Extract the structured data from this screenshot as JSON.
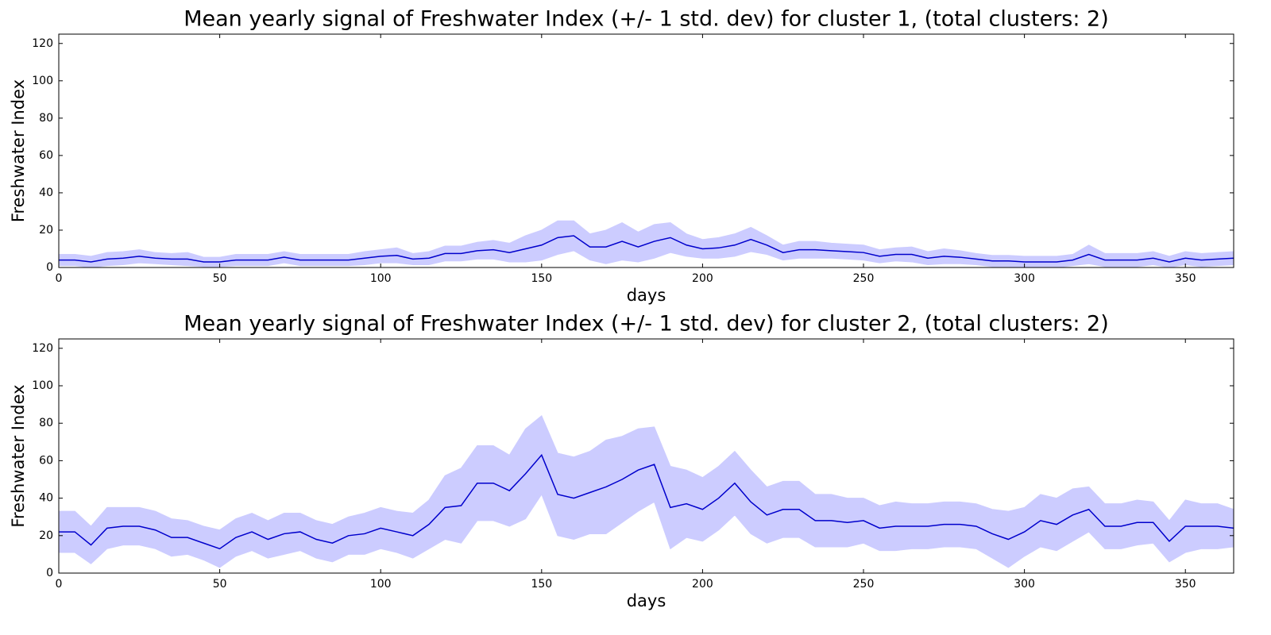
{
  "chart_data": [
    {
      "type": "line",
      "title": "Mean yearly signal of Freshwater Index (+/- 1 std. dev) for cluster 1, (total clusters: 2)",
      "xlabel": "days",
      "ylabel": "Freshwater Index",
      "x": [
        0,
        5,
        10,
        15,
        20,
        25,
        30,
        35,
        40,
        45,
        50,
        55,
        60,
        65,
        70,
        75,
        80,
        85,
        90,
        95,
        100,
        105,
        110,
        115,
        120,
        125,
        130,
        135,
        140,
        145,
        150,
        155,
        160,
        165,
        170,
        175,
        180,
        185,
        190,
        195,
        200,
        205,
        210,
        215,
        220,
        225,
        230,
        235,
        240,
        245,
        250,
        255,
        260,
        265,
        270,
        275,
        280,
        285,
        290,
        295,
        300,
        305,
        310,
        315,
        320,
        325,
        330,
        335,
        340,
        345,
        350,
        355,
        360,
        365
      ],
      "values": [
        4,
        4,
        3,
        4.5,
        5,
        6,
        5,
        4.5,
        4.5,
        3,
        3,
        4,
        4,
        4,
        5.5,
        4,
        4,
        4,
        4,
        5,
        6,
        6.5,
        4.5,
        5,
        7.5,
        7.5,
        9,
        9.5,
        8,
        10,
        12,
        16,
        17,
        11,
        11,
        14,
        11,
        14,
        16,
        12,
        10,
        10.5,
        12,
        15,
        12,
        8,
        9.5,
        9.5,
        9,
        8.5,
        8,
        6,
        7,
        7,
        5,
        6,
        5.5,
        4.5,
        3.5,
        3.5,
        3,
        3,
        3,
        4,
        7,
        4,
        4,
        4,
        5,
        3,
        5,
        4,
        4.5,
        5
      ],
      "std": [
        3,
        3,
        3,
        3.5,
        3.5,
        3.5,
        3,
        3,
        3.5,
        2.5,
        2.5,
        3,
        3,
        3,
        3,
        3,
        3,
        3,
        3,
        3.5,
        3.5,
        4,
        3,
        3.5,
        4,
        4,
        4.5,
        5,
        5,
        7,
        8,
        9,
        8,
        7,
        9,
        10,
        8,
        9,
        8,
        6,
        5,
        5.5,
        6,
        6.5,
        5,
        4,
        4.5,
        4.5,
        4,
        4,
        4,
        3.5,
        3.5,
        4,
        3.5,
        4,
        3.5,
        3,
        3,
        3,
        3,
        3,
        3,
        3,
        5,
        3.5,
        3.5,
        3.5,
        3.5,
        3,
        3.5,
        3.5,
        3.5,
        3.5
      ],
      "color": "#0000cc",
      "band_color": "#ccccff",
      "xlim": [
        0,
        365
      ],
      "xticks": [
        0,
        50,
        100,
        150,
        200,
        250,
        300,
        350
      ],
      "ylim": [
        0,
        125
      ],
      "yticks": [
        0,
        20,
        40,
        60,
        80,
        100,
        120
      ]
    },
    {
      "type": "line",
      "title": "Mean yearly signal of Freshwater Index (+/- 1 std. dev) for cluster 2, (total clusters: 2)",
      "xlabel": "days",
      "ylabel": "Freshwater Index",
      "x": [
        0,
        5,
        10,
        15,
        20,
        25,
        30,
        35,
        40,
        45,
        50,
        55,
        60,
        65,
        70,
        75,
        80,
        85,
        90,
        95,
        100,
        105,
        110,
        115,
        120,
        125,
        130,
        135,
        140,
        145,
        150,
        155,
        160,
        165,
        170,
        175,
        180,
        185,
        190,
        195,
        200,
        205,
        210,
        215,
        220,
        225,
        230,
        235,
        240,
        245,
        250,
        255,
        260,
        265,
        270,
        275,
        280,
        285,
        290,
        295,
        300,
        305,
        310,
        315,
        320,
        325,
        330,
        335,
        340,
        345,
        350,
        355,
        360,
        365
      ],
      "values": [
        22,
        22,
        15,
        24,
        25,
        25,
        23,
        19,
        19,
        16,
        13,
        19,
        22,
        18,
        21,
        22,
        18,
        16,
        20,
        21,
        24,
        22,
        20,
        26,
        35,
        36,
        48,
        48,
        44,
        53,
        63,
        42,
        40,
        43,
        46,
        50,
        55,
        58,
        35,
        37,
        34,
        40,
        48,
        38,
        31,
        34,
        34,
        28,
        28,
        27,
        28,
        24,
        25,
        25,
        25,
        26,
        26,
        25,
        21,
        18,
        22,
        28,
        26,
        31,
        34,
        25,
        25,
        27,
        27,
        17,
        25,
        25,
        25,
        24
      ],
      "std": [
        11,
        11,
        10,
        11,
        10,
        10,
        10,
        10,
        9,
        9,
        10,
        10,
        10,
        10,
        11,
        10,
        10,
        10,
        10,
        11,
        11,
        11,
        12,
        13,
        17,
        20,
        20,
        20,
        19,
        24,
        21,
        22,
        22,
        22,
        25,
        23,
        22,
        20,
        22,
        18,
        17,
        17,
        17,
        17,
        15,
        15,
        15,
        14,
        14,
        13,
        12,
        12,
        13,
        12,
        12,
        12,
        12,
        12,
        13,
        15,
        13,
        14,
        14,
        14,
        12,
        12,
        12,
        12,
        11,
        11,
        14,
        12,
        12,
        10
      ],
      "color": "#0000cc",
      "band_color": "#ccccff",
      "xlim": [
        0,
        365
      ],
      "xticks": [
        0,
        50,
        100,
        150,
        200,
        250,
        300,
        350
      ],
      "ylim": [
        0,
        125
      ],
      "yticks": [
        0,
        20,
        40,
        60,
        80,
        100,
        120
      ]
    }
  ]
}
